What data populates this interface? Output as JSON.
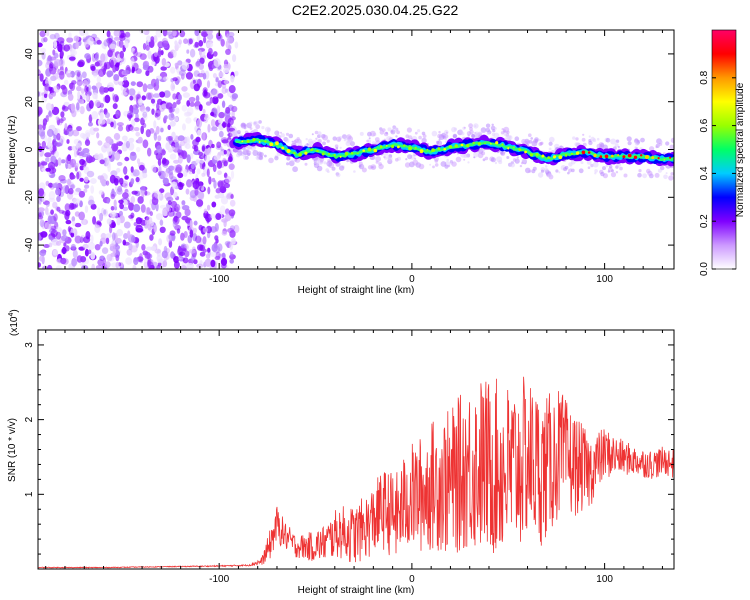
{
  "title": "C2E2.2025.030.04.25.G22",
  "chart_data": [
    {
      "type": "heatmap",
      "xlabel": "Height of straight line (km)",
      "ylabel": "Frequency (Hz)",
      "xlim": [
        -194,
        136
      ],
      "ylim": [
        -50,
        50
      ],
      "xticks": [
        -100,
        0,
        100
      ],
      "yticks": [
        -40,
        -20,
        0,
        20,
        40
      ],
      "colorbar": {
        "label": "Normalized spectral amplitude",
        "range": [
          0,
          1
        ],
        "ticks": [
          "0.0",
          "0.2",
          "0.4",
          "0.6",
          "0.8"
        ],
        "colors": [
          "#ffffff",
          "#cc99ff",
          "#7f00ff",
          "#0000ff",
          "#00ccff",
          "#00ff66",
          "#99ff00",
          "#ffff00",
          "#ff9900",
          "#ff0000",
          "#ff0066"
        ]
      },
      "noise_region_x": [
        -194,
        -91
      ],
      "signal_ridge": {
        "x": [
          -90,
          -80,
          -70,
          -60,
          -50,
          -40,
          -30,
          -20,
          -10,
          0,
          10,
          20,
          30,
          40,
          50,
          60,
          70,
          80,
          90,
          100,
          110,
          120,
          130
        ],
        "frequency": [
          3,
          4,
          2,
          -2,
          0,
          -3,
          -2,
          0,
          2,
          1,
          -1,
          1,
          2,
          3,
          1,
          -1,
          -4,
          -2,
          -1,
          -3,
          -3,
          -3,
          -4
        ]
      },
      "grid": false
    },
    {
      "type": "line",
      "xlabel": "Height of straight line (km)",
      "ylabel": "SNR (10 * v/v)",
      "y_multiplier": "(x10",
      "y_multiplier_exp": "4",
      "y_multiplier_close": ")",
      "xlim": [
        -194,
        136
      ],
      "ylim": [
        0,
        3.2
      ],
      "xticks": [
        -100,
        0,
        100
      ],
      "yticks": [
        1,
        2,
        3
      ],
      "series": [
        {
          "color": "#ee3333",
          "x": [
            -194,
            -160,
            -130,
            -100,
            -85,
            -78,
            -74,
            -70,
            -66,
            -60,
            -52,
            -45,
            -38,
            -30,
            -22,
            -15,
            -8,
            -2,
            5,
            12,
            20,
            28,
            36,
            44,
            52,
            60,
            68,
            76,
            84,
            92,
            100,
            108,
            116,
            124,
            132,
            136
          ],
          "y": [
            0.02,
            0.02,
            0.03,
            0.04,
            0.05,
            0.1,
            0.3,
            0.6,
            0.45,
            0.3,
            0.3,
            0.35,
            0.5,
            0.45,
            0.6,
            0.8,
            0.7,
            0.95,
            1.0,
            1.15,
            1.15,
            1.35,
            1.4,
            1.35,
            1.3,
            1.5,
            1.3,
            1.55,
            1.4,
            1.3,
            1.55,
            1.5,
            1.45,
            1.4,
            1.45,
            1.4
          ],
          "amplitude": [
            0.005,
            0.005,
            0.005,
            0.008,
            0.01,
            0.05,
            0.2,
            0.25,
            0.2,
            0.15,
            0.2,
            0.25,
            0.35,
            0.4,
            0.45,
            0.55,
            0.6,
            0.7,
            0.8,
            0.9,
            1.0,
            1.1,
            1.2,
            1.2,
            1.2,
            1.1,
            1.0,
            0.9,
            0.7,
            0.5,
            0.35,
            0.25,
            0.2,
            0.2,
            0.2,
            0.2
          ]
        }
      ],
      "grid": false
    }
  ]
}
